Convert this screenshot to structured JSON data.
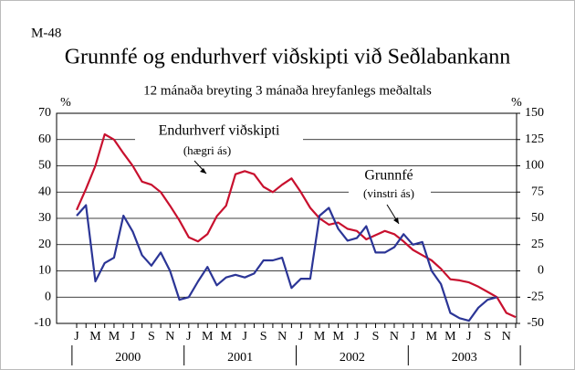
{
  "chart_data": {
    "type": "line",
    "label": "M-48",
    "title": "Grunnfé og endurhverf viðskipti við Seðlabankann",
    "subtitle": "12 mánaða breyting 3 mánaða hreyfanlegs meðaltals",
    "y_label": "%",
    "y2_label": "%",
    "categories": [
      "J",
      null,
      "M",
      null,
      "M",
      null,
      "J",
      null,
      "S",
      null,
      "N",
      null,
      "J",
      null,
      "M",
      null,
      "M",
      null,
      "J",
      null,
      "S",
      null,
      "N",
      null,
      "J",
      null,
      "M",
      null,
      "M",
      null,
      "J",
      null,
      "S",
      null,
      "N",
      null,
      "J",
      null,
      "M",
      null,
      "M",
      null,
      "J",
      null,
      "S",
      null,
      "N",
      null
    ],
    "years": [
      "2000",
      "2001",
      "2002",
      "2003"
    ],
    "series": [
      {
        "name": "Endurhverf viðskipti",
        "note": "(hægri ás)",
        "color": "#c8102e",
        "axis": "y2",
        "values": [
          58,
          78,
          100,
          130,
          125,
          112,
          100,
          85,
          82,
          75,
          62,
          48,
          32,
          28,
          35,
          52,
          62,
          92,
          95,
          92,
          80,
          75,
          82,
          88,
          75,
          60,
          50,
          44,
          46,
          40,
          38,
          30,
          34,
          38,
          35,
          28,
          20,
          15,
          10,
          2,
          -8,
          -9,
          -11,
          -15,
          -20,
          -25,
          -40,
          -44
        ]
      },
      {
        "name": "Grunnfé",
        "note": "(vinstri ás)",
        "color": "#2b3596",
        "axis": "y",
        "values": [
          31,
          35,
          6,
          13,
          15,
          31,
          25,
          16,
          12,
          17,
          10,
          -1,
          0,
          6,
          11.5,
          4.5,
          7.5,
          8.5,
          7.5,
          9,
          14,
          14,
          15,
          3.5,
          7,
          7,
          31,
          34,
          26,
          21.5,
          22.5,
          27,
          17,
          17,
          19,
          24,
          20,
          21,
          10,
          5,
          -6,
          -8,
          -9,
          -4,
          -1,
          0,
          null,
          null
        ]
      }
    ],
    "ylim": [
      -10,
      70
    ],
    "yticks": [
      -10,
      0,
      10,
      20,
      30,
      40,
      50,
      60,
      70
    ],
    "y2lim": [
      -50,
      150
    ],
    "y2ticks": [
      -50,
      -25,
      0,
      25,
      50,
      75,
      100,
      125,
      150
    ],
    "grid": true
  }
}
